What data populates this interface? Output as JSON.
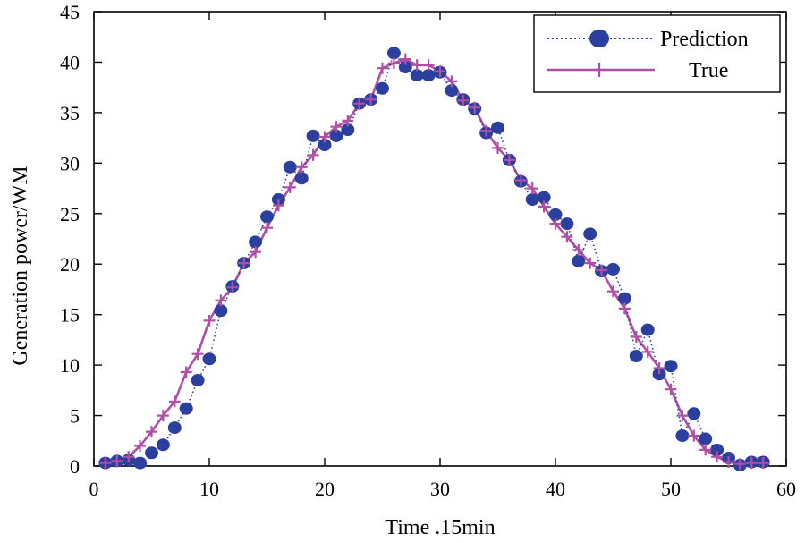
{
  "chart_data": {
    "type": "line",
    "xlabel": "Time .15min",
    "ylabel": "Generation power/WM",
    "xlim": [
      0,
      60
    ],
    "ylim": [
      0,
      45
    ],
    "xticks": [
      "0",
      "10",
      "20",
      "30",
      "40",
      "50",
      "60"
    ],
    "yticks": [
      "0",
      "5",
      "10",
      "15",
      "20",
      "25",
      "30",
      "35",
      "40",
      "45"
    ],
    "legend_position": "top-right",
    "series": [
      {
        "name": "Prediction",
        "style": "dotted line with filled circle markers",
        "color": "#2b3f9e",
        "x": [
          1,
          2,
          3,
          4,
          5,
          6,
          7,
          8,
          9,
          10,
          11,
          12,
          13,
          14,
          15,
          16,
          17,
          18,
          19,
          20,
          21,
          22,
          23,
          24,
          25,
          26,
          27,
          28,
          29,
          30,
          31,
          32,
          33,
          34,
          35,
          36,
          37,
          38,
          39,
          40,
          41,
          42,
          43,
          44,
          45,
          46,
          47,
          48,
          49,
          50,
          51,
          52,
          53,
          54,
          55,
          56,
          57,
          58
        ],
        "values": [
          0.3,
          0.5,
          0.6,
          0.3,
          1.3,
          2.1,
          3.8,
          5.7,
          8.5,
          10.6,
          15.4,
          17.8,
          20.1,
          22.2,
          24.7,
          26.4,
          29.6,
          28.5,
          32.7,
          31.8,
          32.7,
          33.3,
          35.9,
          36.3,
          37.4,
          40.9,
          39.5,
          38.7,
          38.7,
          39.0,
          37.2,
          36.3,
          35.4,
          33.0,
          33.5,
          30.3,
          28.2,
          26.4,
          26.6,
          24.9,
          24.0,
          20.3,
          23.0,
          19.3,
          19.5,
          16.6,
          10.9,
          13.5,
          9.1,
          9.9,
          3.0,
          5.2,
          2.7,
          1.6,
          0.8,
          0.1,
          0.4,
          0.4
        ]
      },
      {
        "name": "True",
        "style": "solid line with plus markers",
        "color": "#b04fa5",
        "x": [
          1,
          2,
          3,
          4,
          5,
          6,
          7,
          8,
          9,
          10,
          11,
          12,
          13,
          14,
          15,
          16,
          17,
          18,
          19,
          20,
          21,
          22,
          23,
          24,
          25,
          26,
          27,
          28,
          29,
          30,
          31,
          32,
          33,
          34,
          35,
          36,
          37,
          38,
          39,
          40,
          41,
          42,
          43,
          44,
          45,
          46,
          47,
          48,
          49,
          50,
          51,
          52,
          53,
          54,
          55,
          56,
          57,
          58
        ],
        "values": [
          0.3,
          0.5,
          0.9,
          2.0,
          3.4,
          5.0,
          6.4,
          9.3,
          11.1,
          14.4,
          16.4,
          17.7,
          20.1,
          21.2,
          23.6,
          25.8,
          27.6,
          29.6,
          30.8,
          32.6,
          33.6,
          34.2,
          35.9,
          36.3,
          39.4,
          39.9,
          40.3,
          39.7,
          39.7,
          39.1,
          38.1,
          36.2,
          35.5,
          33.2,
          31.5,
          30.3,
          28.3,
          27.5,
          25.7,
          24.0,
          22.7,
          21.4,
          20.1,
          19.4,
          17.3,
          15.6,
          12.8,
          11.3,
          9.7,
          7.6,
          5.0,
          3.0,
          1.6,
          0.9,
          0.4,
          0.2,
          0.3,
          0.3
        ]
      }
    ]
  }
}
